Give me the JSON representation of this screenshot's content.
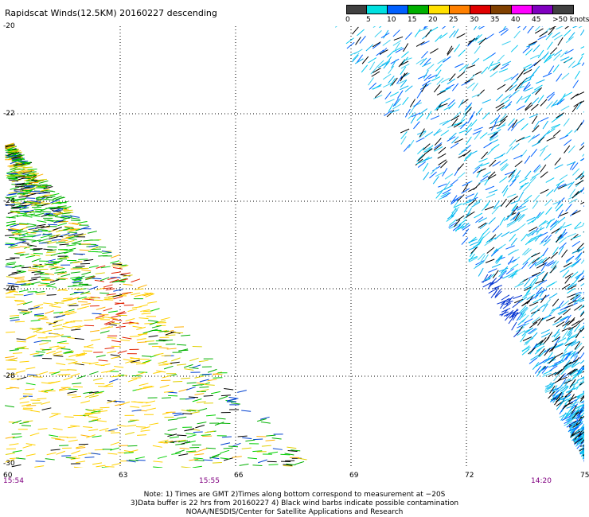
{
  "title": "Rapidscat Winds(12.5KM) 20160227 descending",
  "colorbar": {
    "colors": [
      "#404040",
      "#808080",
      "#00e0e0",
      "#00b0f0",
      "#0060ff",
      "#0000c8",
      "#00b000",
      "#00e000",
      "#ffe000",
      "#ffb000",
      "#ff8000",
      "#ff3000",
      "#e00000",
      "#a00000",
      "#804000",
      "#b06000",
      "#ff00ff",
      "#c000ff",
      "#8000c0",
      "#400080"
    ],
    "labels": [
      "0",
      "5",
      "10",
      "15",
      "20",
      "25",
      "30",
      "35",
      "40",
      "45",
      ">50 knots"
    ]
  },
  "axes": {
    "y_labels": [
      "-20",
      "-22",
      "-24",
      "-26",
      "-28",
      "-30"
    ],
    "x_labels": [
      "60",
      "63",
      "66",
      "69",
      "72",
      "75"
    ],
    "times": [
      "15:54",
      "15:55",
      "14:20"
    ]
  },
  "notes": {
    "line1": "Note: 1) Times are GMT 2)Times along bottom correspond to measurement at −20S",
    "line2": "3)Data buffer is 22 hrs from 20160227 4) Black wind barbs indicate possible contamination",
    "line3": "NOAA/NESDIS/Center for Satellite Applications and Research"
  }
}
